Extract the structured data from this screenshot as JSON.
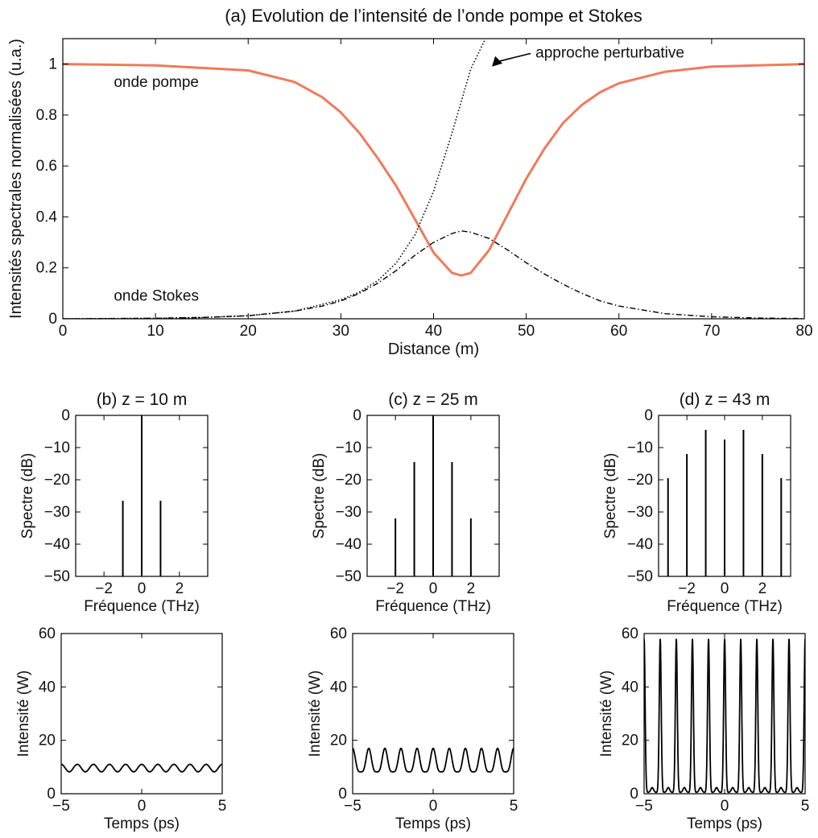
{
  "chart_data": [
    {
      "id": "a",
      "type": "line",
      "title": "(a) Evolution de l’intensité de l’onde pompe et Stokes",
      "xlabel": "Distance (m)",
      "ylabel": "Intensités spectrales normalisées (u.a.)",
      "xlim": [
        0,
        80
      ],
      "ylim": [
        0,
        1.1
      ],
      "xticks": [
        0,
        10,
        20,
        30,
        40,
        50,
        60,
        70,
        80
      ],
      "yticks": [
        0,
        0.2,
        0.4,
        0.6,
        0.8,
        1
      ],
      "ytick_labels": [
        "0",
        "0.2",
        "0.4",
        "0.6",
        "0.8",
        "1"
      ],
      "grid": false,
      "series": [
        {
          "name": "onde pompe",
          "color": "#f07a5c",
          "style": "solid",
          "x": [
            0,
            10,
            20,
            25,
            28,
            30,
            32,
            34,
            36,
            38,
            40,
            42,
            43,
            44,
            46,
            48,
            50,
            52,
            54,
            56,
            58,
            60,
            65,
            70,
            80
          ],
          "y": [
            1.0,
            0.995,
            0.975,
            0.93,
            0.87,
            0.81,
            0.73,
            0.63,
            0.52,
            0.39,
            0.26,
            0.18,
            0.17,
            0.18,
            0.27,
            0.41,
            0.55,
            0.67,
            0.77,
            0.84,
            0.89,
            0.925,
            0.97,
            0.99,
            1.0
          ]
        },
        {
          "name": "onde Stokes",
          "color": "#000000",
          "style": "dashdot",
          "x": [
            0,
            10,
            15,
            20,
            25,
            28,
            30,
            32,
            34,
            36,
            38,
            40,
            42,
            43,
            44,
            46,
            48,
            50,
            52,
            54,
            56,
            58,
            60,
            65,
            70,
            75,
            80
          ],
          "y": [
            0.0,
            0.002,
            0.005,
            0.012,
            0.03,
            0.05,
            0.07,
            0.1,
            0.14,
            0.19,
            0.25,
            0.3,
            0.335,
            0.345,
            0.34,
            0.315,
            0.27,
            0.22,
            0.175,
            0.135,
            0.1,
            0.07,
            0.05,
            0.02,
            0.008,
            0.003,
            0.001
          ]
        },
        {
          "name": "approche perturbative",
          "color": "#000000",
          "style": "dotted",
          "x": [
            0,
            10,
            15,
            20,
            25,
            30,
            32,
            34,
            36,
            38,
            40,
            42,
            44,
            45.6
          ],
          "y": [
            0.0,
            0.002,
            0.005,
            0.012,
            0.03,
            0.075,
            0.105,
            0.15,
            0.22,
            0.33,
            0.5,
            0.73,
            0.98,
            1.1
          ]
        }
      ],
      "annotations": [
        {
          "text": "onde pompe",
          "x": 5.5,
          "y": 0.93
        },
        {
          "text": "onde Stokes",
          "x": 5.5,
          "y": 0.09
        },
        {
          "text": "approche perturbative",
          "x": 51,
          "y": 1.045,
          "arrow_to": [
            46.3,
            0.99
          ]
        }
      ]
    },
    {
      "id": "b-spectrum",
      "type": "bar",
      "title": "(b) z = 10 m",
      "xlabel": "Fréquence (THz)",
      "ylabel": "Spectre (dB)",
      "xlim": [
        -3.5,
        3.5
      ],
      "ylim": [
        -50,
        0
      ],
      "xticks": [
        -2,
        0,
        2
      ],
      "yticks": [
        -50,
        -40,
        -30,
        -20,
        -10,
        0
      ],
      "x": [
        -1,
        0,
        1
      ],
      "y": [
        -26.5,
        0,
        -26.5
      ]
    },
    {
      "id": "c-spectrum",
      "type": "bar",
      "title": "(c) z = 25 m",
      "xlabel": "Fréquence (THz)",
      "ylabel": "Spectre (dB)",
      "xlim": [
        -3.5,
        3.5
      ],
      "ylim": [
        -50,
        0
      ],
      "xticks": [
        -2,
        0,
        2
      ],
      "yticks": [
        -50,
        -40,
        -30,
        -20,
        -10,
        0
      ],
      "x": [
        -2,
        -1,
        0,
        1,
        2
      ],
      "y": [
        -32,
        -14.5,
        0,
        -14.5,
        -32
      ]
    },
    {
      "id": "d-spectrum",
      "type": "bar",
      "title": "(d) z = 43 m",
      "xlabel": "Fréquence (THz)",
      "ylabel": "Spectre (dB)",
      "xlim": [
        -3.5,
        3.5
      ],
      "ylim": [
        -50,
        0
      ],
      "xticks": [
        -2,
        0,
        2
      ],
      "yticks": [
        -50,
        -40,
        -30,
        -20,
        -10,
        0
      ],
      "x": [
        -3,
        -2,
        -1,
        0,
        1,
        2,
        3
      ],
      "y": [
        -19.5,
        -12,
        -4.5,
        -7.5,
        -4.5,
        -12,
        -19.5
      ]
    },
    {
      "id": "b-time",
      "type": "line",
      "xlabel": "Temps (ps)",
      "ylabel": "Intensité (W)",
      "xlim": [
        -5,
        5
      ],
      "ylim": [
        0,
        60
      ],
      "xticks": [
        -5,
        0,
        5
      ],
      "yticks": [
        0,
        20,
        40,
        60
      ],
      "signal": {
        "period_ps": 1.0,
        "peak_times_ps": [
          -4,
          -3,
          -2,
          -1,
          0,
          1,
          2,
          3,
          4
        ],
        "max_W": 11,
        "min_W": 8.2
      }
    },
    {
      "id": "c-time",
      "type": "line",
      "xlabel": "Temps (ps)",
      "ylabel": "Intensité (W)",
      "xlim": [
        -5,
        5
      ],
      "ylim": [
        0,
        60
      ],
      "xticks": [
        -5,
        0,
        5
      ],
      "yticks": [
        0,
        20,
        40,
        60
      ],
      "signal": {
        "period_ps": 1.0,
        "peak_times_ps": [
          -4,
          -3,
          -2,
          -1,
          0,
          1,
          2,
          3,
          4
        ],
        "max_W": 17,
        "min_W": 6
      }
    },
    {
      "id": "d-time",
      "type": "line",
      "xlabel": "Temps (ps)",
      "ylabel": "Intensité (W)",
      "xlim": [
        -5,
        5
      ],
      "ylim": [
        0,
        60
      ],
      "xticks": [
        -5,
        0,
        5
      ],
      "yticks": [
        0,
        20,
        40,
        60
      ],
      "signal": {
        "period_ps": 1.0,
        "peak_times_ps": [
          -4,
          -3,
          -2,
          -1,
          0,
          1,
          2,
          3,
          4
        ],
        "max_W": 58,
        "min_W": 0.5,
        "secondary_max_W": 1.8
      }
    }
  ]
}
